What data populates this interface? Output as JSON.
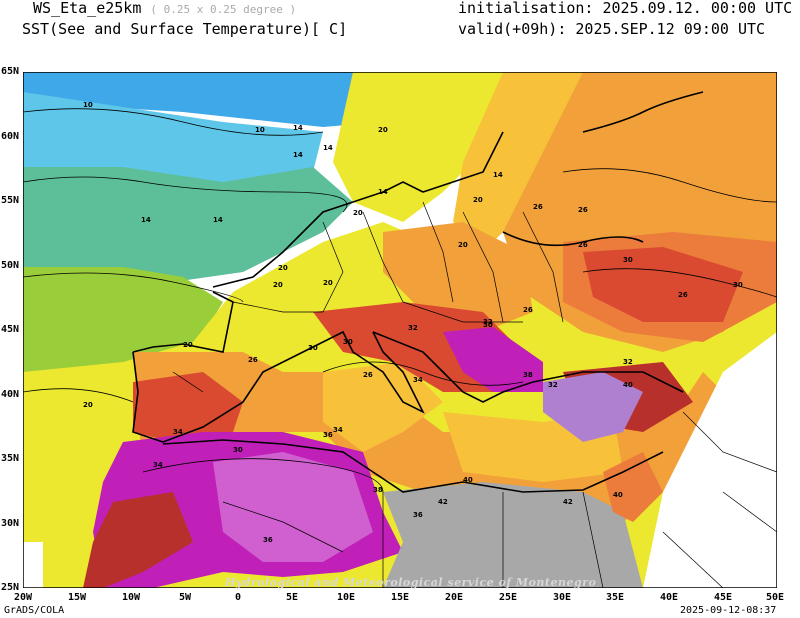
{
  "header": {
    "model": "WS_Eta_e25km",
    "resolution": "( 0.25 x 0.25 degree )",
    "variable": "SST(See and Surface Temperature)[ C]",
    "initialisation": "initialisation: 2025.09.12. 00:00 UTC",
    "valid": "valid(+09h): 2025.SEP.12 09:00 UTC"
  },
  "footer": {
    "software": "GrADS/COLA",
    "timestamp": "2025-09-12-08:37",
    "watermark": "Hydrological and Meteorological service of Montenegro"
  },
  "axes": {
    "lat_labels": [
      "65N",
      "60N",
      "55N",
      "50N",
      "45N",
      "40N",
      "35N",
      "30N",
      "25N"
    ],
    "lon_labels": [
      "20W",
      "15W",
      "10W",
      "5W",
      "0",
      "5E",
      "10E",
      "15E",
      "20E",
      "25E",
      "30E",
      "35E",
      "40E",
      "45E",
      "50E"
    ]
  },
  "contour_labels": [
    "10",
    "10",
    "14",
    "14",
    "14",
    "14",
    "14",
    "14",
    "14",
    "20",
    "20",
    "20",
    "20",
    "20",
    "20",
    "20",
    "20",
    "20",
    "26",
    "26",
    "26",
    "26",
    "26",
    "26",
    "26",
    "30",
    "30",
    "30",
    "30",
    "30",
    "30",
    "32",
    "32",
    "32",
    "32",
    "34",
    "34",
    "34",
    "34",
    "36",
    "36",
    "36",
    "38",
    "38",
    "40",
    "40",
    "40",
    "42",
    "42"
  ],
  "colors": {
    "c_lt8": "#3fa8e8",
    "c_10": "#5ec6e8",
    "c_14": "#5dbf9a",
    "c_18": "#9acd3a",
    "c_20": "#ece830",
    "c_24": "#f7c23a",
    "c_26": "#f2a03a",
    "c_28": "#ec7c3c",
    "c_30": "#d94a30",
    "c_34": "#b8302c",
    "c_36": "#c020b8",
    "c_38": "#d060d0",
    "c_40": "#b080d0",
    "c_nodata": "#a8a8a8"
  }
}
